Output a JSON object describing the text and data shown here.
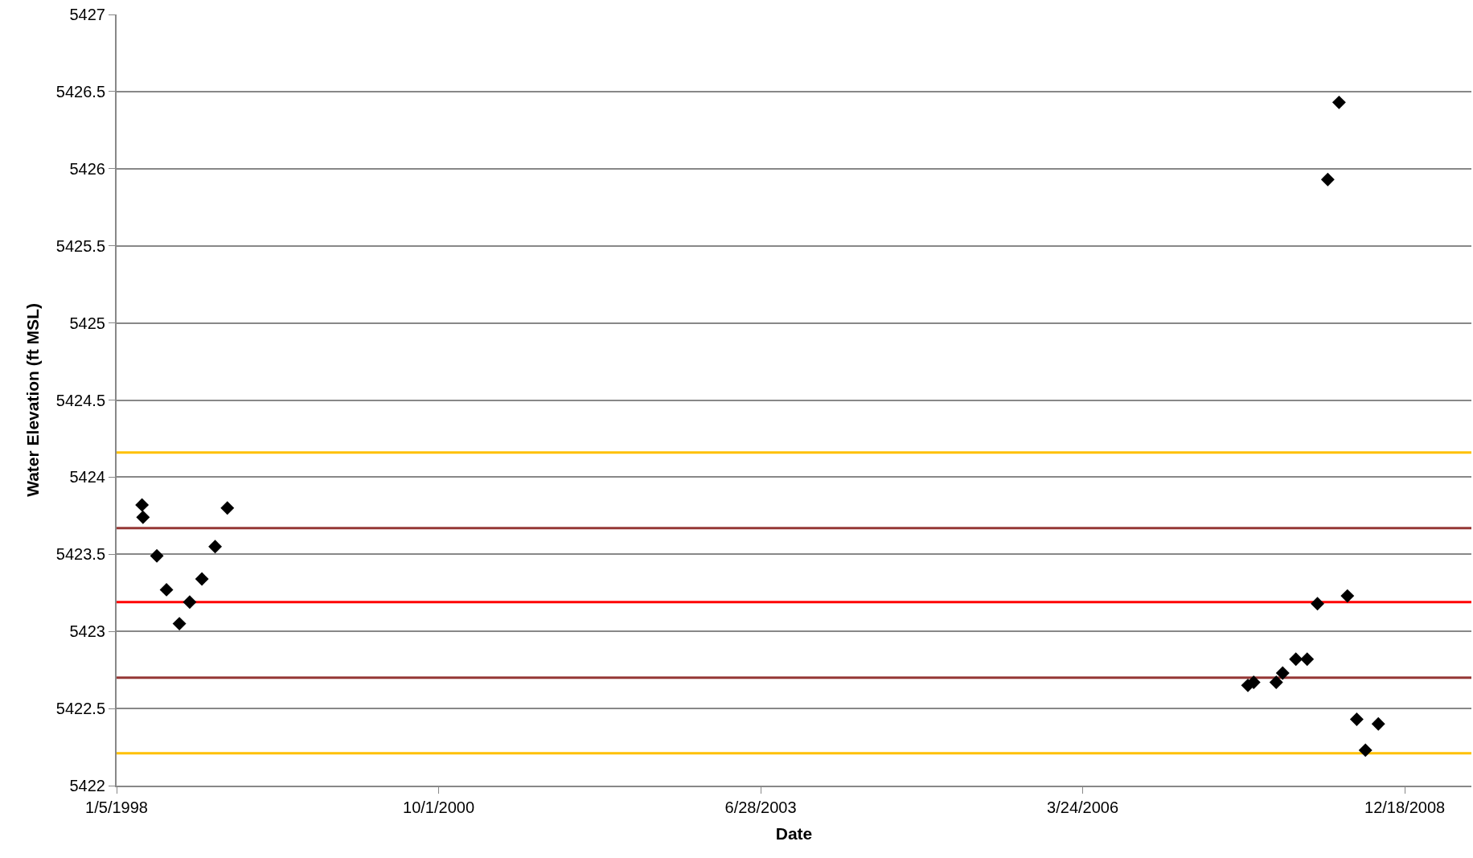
{
  "chart_data": {
    "type": "scatter",
    "xlabel": "Date",
    "ylabel": "Water Elevation (ft MSL)",
    "x": [
      "1998-03-25",
      "1998-03-28",
      "1998-05-10",
      "1998-06-09",
      "1998-07-19",
      "1998-08-20",
      "1998-09-27",
      "1998-11-07",
      "1998-12-15",
      "2007-08-19",
      "2007-09-06",
      "2007-11-15",
      "2007-12-05",
      "2008-01-15",
      "2008-02-19",
      "2008-03-22",
      "2008-04-23",
      "2008-05-28",
      "2008-06-23",
      "2008-07-22",
      "2008-08-18",
      "2008-09-27"
    ],
    "series": [
      {
        "color": "#000000",
        "values": [
          5423.82,
          5423.74,
          5423.49,
          5423.27,
          5423.05,
          5423.19,
          5423.34,
          5423.55,
          5423.8,
          5422.65,
          5422.67,
          5422.67,
          5422.73,
          5422.82,
          5422.82,
          5423.18,
          5425.93,
          5426.43,
          5423.23,
          5422.43,
          5422.23,
          5422.4
        ]
      }
    ],
    "marker": "diamond",
    "xlim": [
      "1998-01-05",
      "2009-07-13"
    ],
    "xticks": [
      {
        "value": "1998-01-05",
        "label": "1/5/1998"
      },
      {
        "value": "2000-10-01",
        "label": "10/1/2000"
      },
      {
        "value": "2003-06-28",
        "label": "6/28/2003"
      },
      {
        "value": "2006-03-24",
        "label": "3/24/2006"
      },
      {
        "value": "2008-12-18",
        "label": "12/18/2008"
      }
    ],
    "ylim": [
      5422,
      5427
    ],
    "yticks": [
      5422,
      5422.5,
      5423,
      5423.5,
      5424,
      5424.5,
      5425,
      5425.5,
      5426,
      5426.5,
      5427
    ],
    "grid": "y",
    "ref_lines": [
      {
        "axis": "y",
        "value": 5424.16,
        "color": "#ffc000"
      },
      {
        "axis": "y",
        "value": 5423.67,
        "color": "#953735"
      },
      {
        "axis": "y",
        "value": 5423.19,
        "color": "#ff0000"
      },
      {
        "axis": "y",
        "value": 5422.7,
        "color": "#953735"
      },
      {
        "axis": "y",
        "value": 5422.21,
        "color": "#ffc000"
      }
    ]
  }
}
